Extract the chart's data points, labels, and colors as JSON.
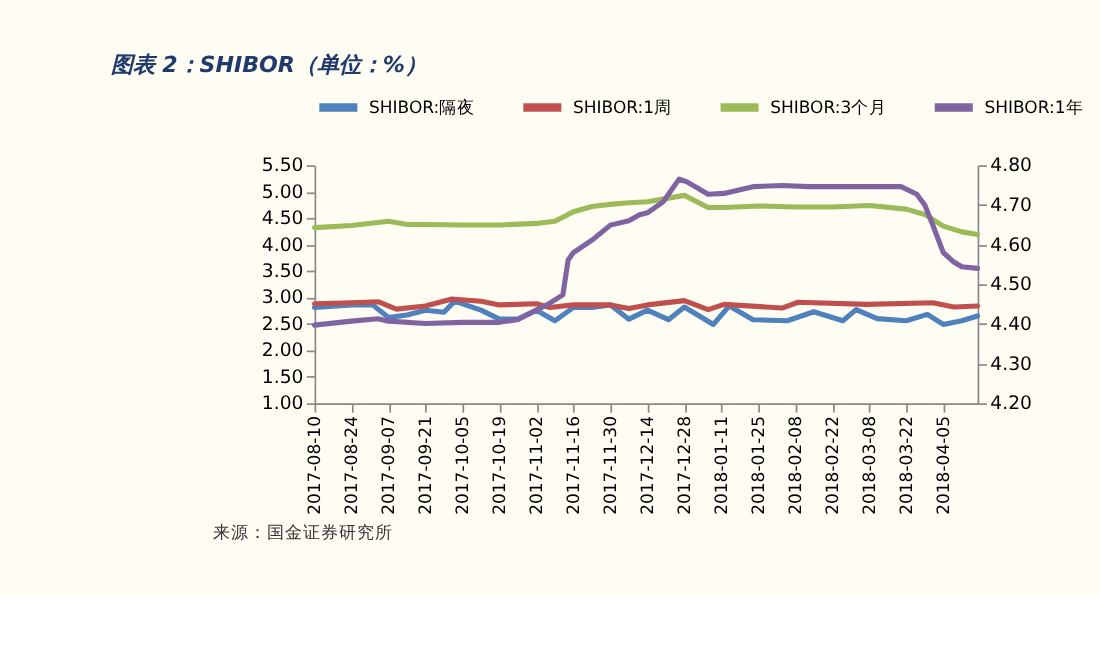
{
  "chart_data": {
    "type": "line",
    "title": "图表 2：SHIBOR（单位：%）",
    "annotations": [
      "来源：国金证券研究所"
    ],
    "legend": "top",
    "xlim": [
      "2017-08-10",
      "2018-04-18"
    ],
    "xticks": [
      "2017-08-10",
      "2017-08-24",
      "2017-09-07",
      "2017-09-21",
      "2017-10-05",
      "2017-10-19",
      "2017-11-02",
      "2017-11-16",
      "2017-11-30",
      "2017-12-14",
      "2017-12-28",
      "2018-01-11",
      "2018-01-25",
      "2018-02-08",
      "2018-02-22",
      "2018-03-08",
      "2018-03-22",
      "2018-04-05"
    ],
    "ylim": [
      1.0,
      5.5
    ],
    "yticks": [
      {
        "value": 1.0,
        "label": "1.00"
      },
      {
        "value": 1.5,
        "label": "1.50"
      },
      {
        "value": 2.0,
        "label": "2.00"
      },
      {
        "value": 2.5,
        "label": "2.50"
      },
      {
        "value": 3.0,
        "label": "3.00"
      },
      {
        "value": 3.5,
        "label": "3.50"
      },
      {
        "value": 4.0,
        "label": "4.00"
      },
      {
        "value": 4.5,
        "label": "4.50"
      },
      {
        "value": 5.0,
        "label": "5.00"
      },
      {
        "value": 5.5,
        "label": "5.50"
      }
    ],
    "y2lim": [
      4.2,
      4.8
    ],
    "y2ticks": [
      {
        "value": 4.2,
        "label": "4.20"
      },
      {
        "value": 4.3,
        "label": "4.30"
      },
      {
        "value": 4.4,
        "label": "4.40"
      },
      {
        "value": 4.5,
        "label": "4.50"
      },
      {
        "value": 4.6,
        "label": "4.60"
      },
      {
        "value": 4.7,
        "label": "4.70"
      },
      {
        "value": 4.8,
        "label": "4.80"
      }
    ],
    "series": [
      {
        "name": "SHIBOR:隔夜",
        "color": "#4f81bd",
        "x": [
          "2017-08-10",
          "2017-08-24",
          "2017-09-01",
          "2017-09-07",
          "2017-09-14",
          "2017-09-21",
          "2017-09-28",
          "2017-10-02",
          "2017-10-12",
          "2017-10-19",
          "2017-10-26",
          "2017-11-02",
          "2017-11-09",
          "2017-11-16",
          "2017-11-23",
          "2017-11-30",
          "2017-12-07",
          "2017-12-14",
          "2017-12-22",
          "2017-12-28",
          "2018-01-08",
          "2018-01-14",
          "2018-01-23",
          "2018-02-05",
          "2018-02-15",
          "2018-02-26",
          "2018-03-03",
          "2018-03-11",
          "2018-03-22",
          "2018-03-30",
          "2018-04-05",
          "2018-04-12",
          "2018-04-18"
        ],
        "values": [
          2.81,
          2.86,
          2.86,
          2.62,
          2.67,
          2.76,
          2.72,
          2.93,
          2.76,
          2.59,
          2.59,
          2.76,
          2.56,
          2.81,
          2.81,
          2.86,
          2.59,
          2.76,
          2.58,
          2.82,
          2.49,
          2.84,
          2.58,
          2.56,
          2.73,
          2.56,
          2.77,
          2.6,
          2.56,
          2.68,
          2.49,
          2.56,
          2.65
        ]
      },
      {
        "name": "SHIBOR:1周",
        "color": "#c0504d",
        "x": [
          "2017-08-10",
          "2017-08-24",
          "2017-09-03",
          "2017-09-10",
          "2017-09-21",
          "2017-10-01",
          "2017-10-12",
          "2017-10-19",
          "2017-11-02",
          "2017-11-07",
          "2017-11-16",
          "2017-11-30",
          "2017-12-07",
          "2017-12-14",
          "2017-12-28",
          "2018-01-06",
          "2018-01-12",
          "2018-02-03",
          "2018-02-09",
          "2018-03-07",
          "2018-04-01",
          "2018-04-09",
          "2018-04-18"
        ],
        "values": [
          2.88,
          2.9,
          2.92,
          2.78,
          2.84,
          2.97,
          2.93,
          2.86,
          2.88,
          2.81,
          2.86,
          2.86,
          2.79,
          2.86,
          2.94,
          2.77,
          2.87,
          2.8,
          2.91,
          2.87,
          2.9,
          2.82,
          2.84
        ]
      },
      {
        "name": "SHIBOR:3个月",
        "color": "#9bbb59",
        "x": [
          "2017-08-10",
          "2017-08-24",
          "2017-09-07",
          "2017-09-14",
          "2017-09-21",
          "2017-10-05",
          "2017-10-19",
          "2017-11-02",
          "2017-11-09",
          "2017-11-16",
          "2017-11-23",
          "2017-11-30",
          "2017-12-07",
          "2017-12-14",
          "2017-12-28",
          "2018-01-06",
          "2018-01-12",
          "2018-01-25",
          "2018-02-08",
          "2018-02-22",
          "2018-03-08",
          "2018-03-22",
          "2018-03-29",
          "2018-04-05",
          "2018-04-12",
          "2018-04-18"
        ],
        "values": [
          4.32,
          4.36,
          4.44,
          4.38,
          4.38,
          4.37,
          4.37,
          4.4,
          4.44,
          4.62,
          4.72,
          4.76,
          4.79,
          4.81,
          4.93,
          4.7,
          4.7,
          4.73,
          4.71,
          4.71,
          4.74,
          4.67,
          4.57,
          4.35,
          4.24,
          4.19
        ]
      },
      {
        "name": "SHIBOR:1年",
        "color": "#8064a2",
        "axis": "y2",
        "x": [
          "2017-08-10",
          "2017-08-24",
          "2017-09-03",
          "2017-09-07",
          "2017-09-21",
          "2017-10-05",
          "2017-10-19",
          "2017-10-26",
          "2017-11-02",
          "2017-11-06",
          "2017-11-12",
          "2017-11-14",
          "2017-11-16",
          "2017-11-23",
          "2017-11-30",
          "2017-12-07",
          "2017-12-11",
          "2017-12-14",
          "2017-12-20",
          "2017-12-26",
          "2017-12-29",
          "2018-01-06",
          "2018-01-12",
          "2018-01-23",
          "2018-02-03",
          "2018-02-13",
          "2018-03-07",
          "2018-03-20",
          "2018-03-26",
          "2018-03-29",
          "2018-04-01",
          "2018-04-05",
          "2018-04-09",
          "2018-04-12",
          "2018-04-18"
        ],
        "values": [
          4.397,
          4.407,
          4.413,
          4.407,
          4.401,
          4.404,
          4.404,
          4.411,
          4.435,
          4.448,
          4.473,
          4.561,
          4.58,
          4.611,
          4.649,
          4.66,
          4.675,
          4.68,
          4.708,
          4.765,
          4.758,
          4.727,
          4.729,
          4.746,
          4.749,
          4.746,
          4.746,
          4.746,
          4.727,
          4.7,
          4.65,
          4.58,
          4.556,
          4.544,
          4.54
        ]
      }
    ]
  }
}
